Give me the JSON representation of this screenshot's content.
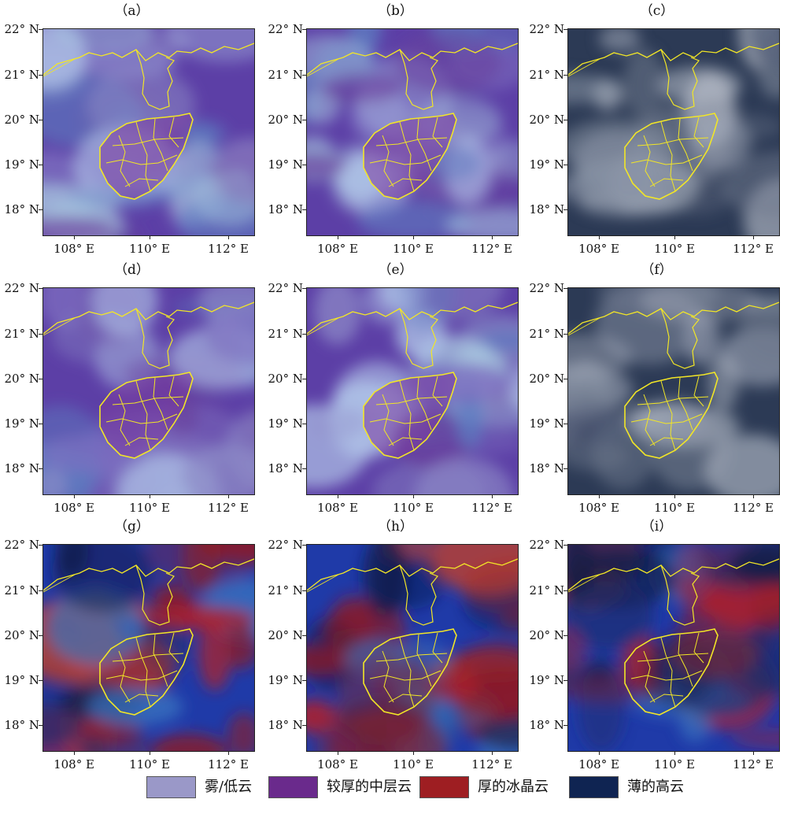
{
  "panels": [
    {
      "label": "（a）",
      "type": "micro"
    },
    {
      "label": "（b）",
      "type": "micro"
    },
    {
      "label": "（c）",
      "type": "vis"
    },
    {
      "label": "（d）",
      "type": "micro"
    },
    {
      "label": "（e）",
      "type": "micro"
    },
    {
      "label": "（f）",
      "type": "vis"
    },
    {
      "label": "（g）",
      "type": "red"
    },
    {
      "label": "（h）",
      "type": "red"
    },
    {
      "label": "（i）",
      "type": "red"
    }
  ],
  "axes": {
    "y_ticks": [
      "22° N",
      "21° N",
      "20° N",
      "19° N",
      "18° N"
    ],
    "x_ticks": [
      "108° E",
      "110° E",
      "112° E"
    ]
  },
  "legend": [
    {
      "label": "雾/低云",
      "color": "#9a98c8"
    },
    {
      "label": "较厚的中层云",
      "color": "#6a2a8c"
    },
    {
      "label": "厚的冰晶云",
      "color": "#9e1e22"
    },
    {
      "label": "薄的高云",
      "color": "#0f2452"
    }
  ],
  "colors": {
    "coastline": "#f2e626",
    "micro_base": "#5c3fa6",
    "vis_base": "#2c3a55",
    "red_base": "#1f3aa8"
  }
}
